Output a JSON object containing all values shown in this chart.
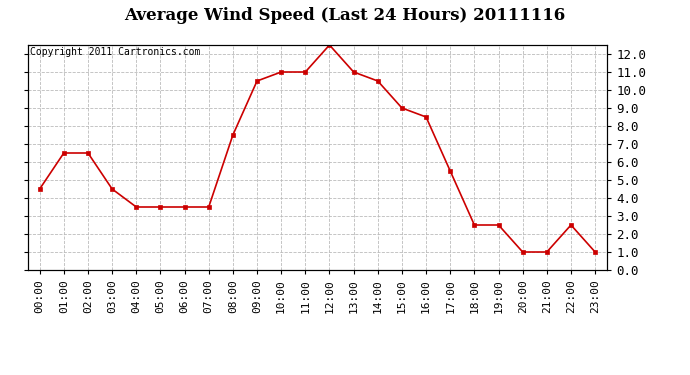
{
  "title": "Average Wind Speed (Last 24 Hours) 20111116",
  "copyright_text": "Copyright 2011 Cartronics.com",
  "hours": [
    "00:00",
    "01:00",
    "02:00",
    "03:00",
    "04:00",
    "05:00",
    "06:00",
    "07:00",
    "08:00",
    "09:00",
    "10:00",
    "11:00",
    "12:00",
    "13:00",
    "14:00",
    "15:00",
    "16:00",
    "17:00",
    "18:00",
    "19:00",
    "20:00",
    "21:00",
    "22:00",
    "23:00"
  ],
  "values": [
    4.5,
    6.5,
    6.5,
    4.5,
    3.5,
    3.5,
    3.5,
    3.5,
    7.5,
    10.5,
    11.0,
    11.0,
    12.5,
    11.0,
    10.5,
    9.0,
    8.5,
    5.5,
    2.5,
    2.5,
    1.0,
    1.0,
    2.5,
    1.0
  ],
  "line_color": "#cc0000",
  "marker": "s",
  "marker_size": 3,
  "ylim": [
    0.0,
    12.5
  ],
  "yticks": [
    0.0,
    1.0,
    2.0,
    3.0,
    4.0,
    5.0,
    6.0,
    7.0,
    8.0,
    9.0,
    10.0,
    11.0,
    12.0
  ],
  "background_color": "#ffffff",
  "grid_color": "#bbbbbb",
  "title_fontsize": 12,
  "copyright_fontsize": 7,
  "axis_label_color": "#000000",
  "tick_label_color": "#000000",
  "tick_label_fontsize": 8,
  "right_ytick_fontsize": 9
}
